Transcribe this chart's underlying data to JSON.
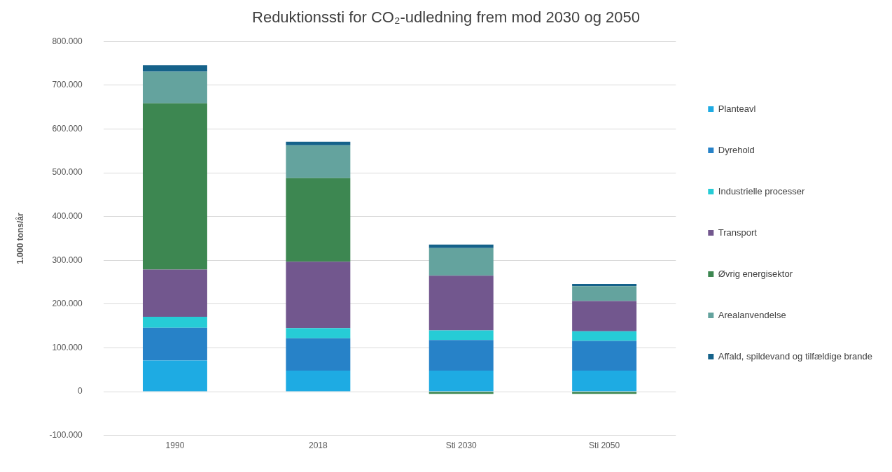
{
  "chart_data": {
    "type": "bar",
    "title": "Reduktionssti for CO₂-udledning frem mod 2030 og 2050",
    "ylabel": "1.000 tons/år",
    "categories": [
      "1990",
      "2018",
      "Sti 2030",
      "Sti 2050"
    ],
    "stacked": true,
    "grid": "y",
    "legend": "right",
    "ylim": [
      -100000,
      800000
    ],
    "yticks": [
      {
        "value": -100000,
        "label": "-100.000"
      },
      {
        "value": 0,
        "label": "0"
      },
      {
        "value": 100000,
        "label": "100.000"
      },
      {
        "value": 200000,
        "label": "200.000"
      },
      {
        "value": 300000,
        "label": "300.000"
      },
      {
        "value": 400000,
        "label": "400.000"
      },
      {
        "value": 500000,
        "label": "500.000"
      },
      {
        "value": 600000,
        "label": "600.000"
      },
      {
        "value": 700000,
        "label": "700.000"
      },
      {
        "value": 800000,
        "label": "800.000"
      }
    ],
    "series": [
      {
        "name": "Planteavl",
        "color": "#1eabe3",
        "values": [
          71000,
          48000,
          48000,
          48000
        ]
      },
      {
        "name": "Dyrehold",
        "color": "#2782c8",
        "values": [
          75000,
          74000,
          70000,
          68000
        ]
      },
      {
        "name": "Industrielle processer",
        "color": "#26ccd6",
        "values": [
          25000,
          23000,
          22000,
          22000
        ]
      },
      {
        "name": "Transport",
        "color": "#72578e",
        "values": [
          108000,
          152000,
          125000,
          69000
        ]
      },
      {
        "name": "Øvrig energisektor",
        "color": "#3d8751",
        "values": [
          380000,
          191000,
          -5000,
          -5000
        ]
      },
      {
        "name": "Arealanvendelse",
        "color": "#64a39e",
        "values": [
          72000,
          75000,
          63000,
          34000
        ]
      },
      {
        "name": "Affald, spildevand og tilfældige brande",
        "color": "#15628a",
        "values": [
          15000,
          8000,
          8000,
          5000
        ]
      }
    ]
  }
}
